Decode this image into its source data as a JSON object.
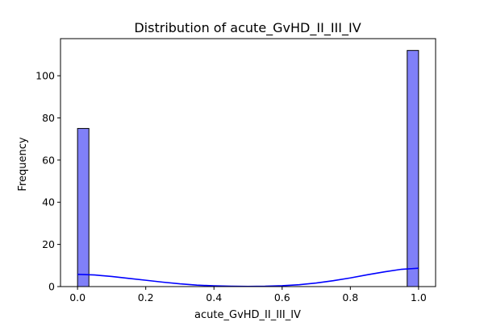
{
  "chart_data": {
    "type": "bar",
    "title": "Distribution of acute_GvHD_II_III_IV",
    "xlabel": "acute_GvHD_II_III_IV",
    "ylabel": "Frequency",
    "xlim": [
      -0.05,
      1.05
    ],
    "ylim": [
      0,
      117.6
    ],
    "xticks": [
      "0.0",
      "0.2",
      "0.4",
      "0.6",
      "0.8",
      "1.0"
    ],
    "yticks": [
      "0",
      "20",
      "40",
      "60",
      "80",
      "100"
    ],
    "grid": false,
    "bins": {
      "start": 0.0,
      "width": 0.0333,
      "count": 30
    },
    "bars": [
      {
        "x0": 0.0,
        "x1": 0.0333,
        "value": 75
      },
      {
        "x0": 0.9667,
        "x1": 1.0,
        "value": 112
      }
    ],
    "kde": {
      "x": [
        0.0,
        0.05,
        0.1,
        0.15,
        0.2,
        0.25,
        0.3,
        0.35,
        0.4,
        0.45,
        0.5,
        0.55,
        0.6,
        0.65,
        0.7,
        0.75,
        0.8,
        0.85,
        0.9,
        0.95,
        1.0
      ],
      "y": [
        5.8,
        5.5,
        4.8,
        3.9,
        3.0,
        2.1,
        1.3,
        0.7,
        0.35,
        0.15,
        0.1,
        0.15,
        0.4,
        0.9,
        1.7,
        2.8,
        4.1,
        5.6,
        7.0,
        8.2,
        8.7
      ]
    },
    "colors": {
      "bar_fill": "#8080f8",
      "bar_edge": "#000000",
      "kde": "#0000ff"
    }
  }
}
